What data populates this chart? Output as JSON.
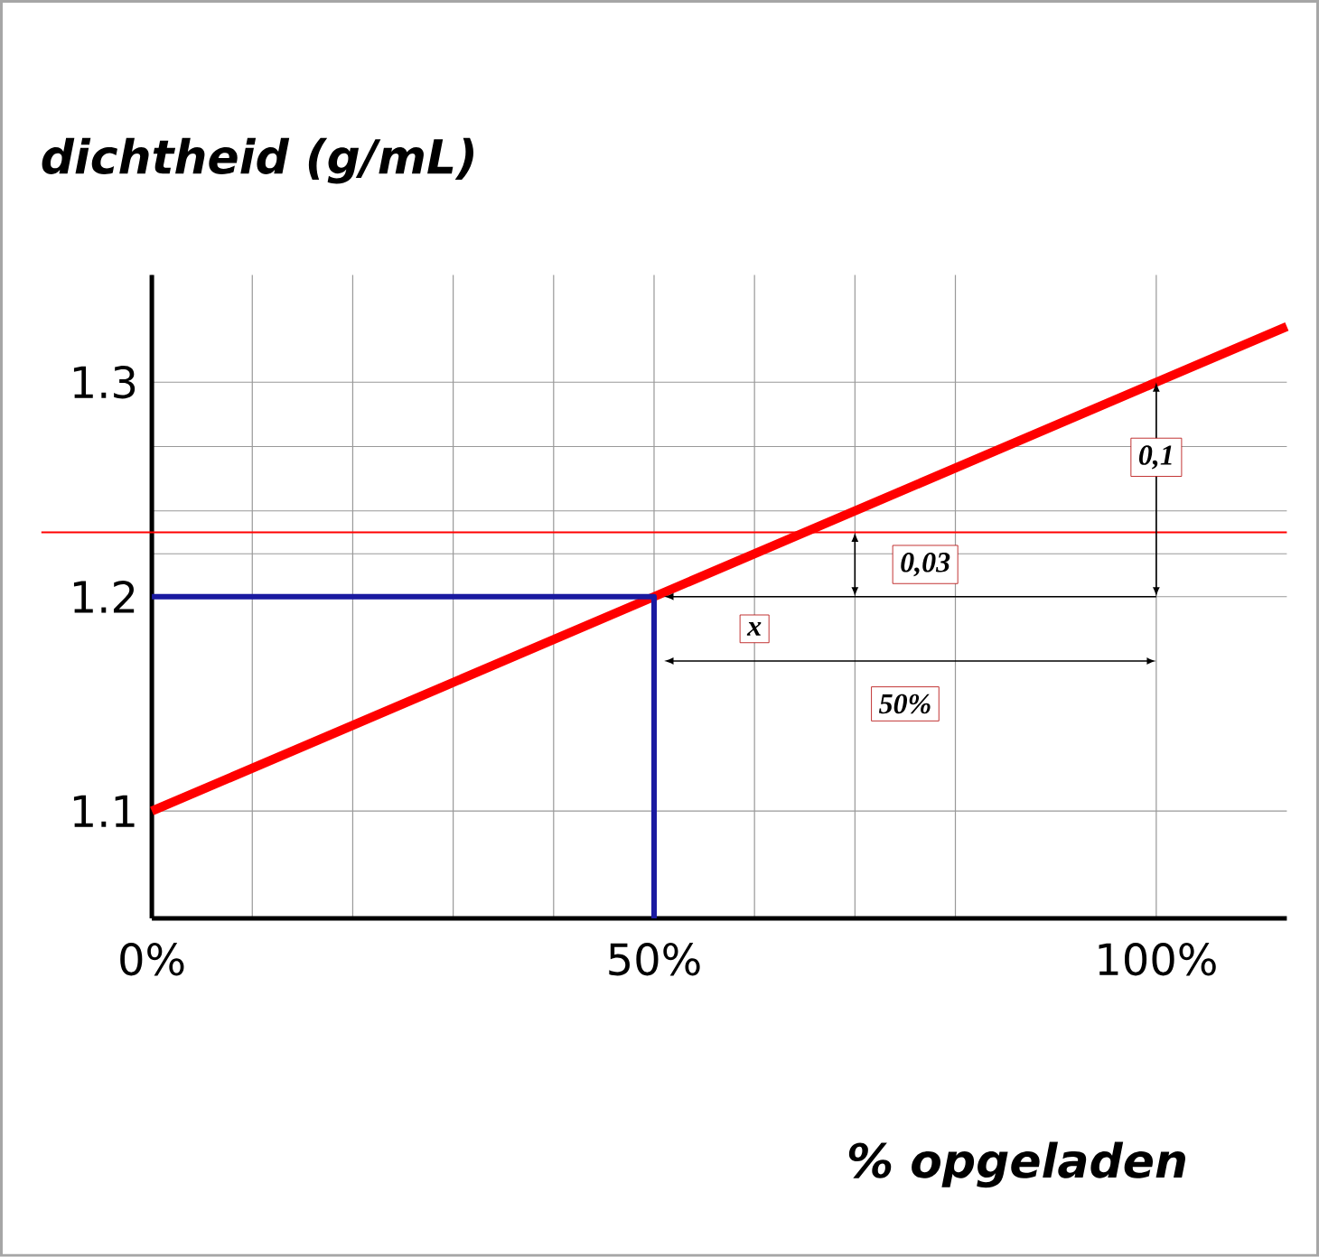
{
  "chart_data": {
    "type": "line",
    "xlabel": "% opgeladen",
    "ylabel": "dichtheid (g/mL)",
    "series": [
      {
        "x": [
          0,
          50,
          100,
          113
        ],
        "values": [
          1.1,
          1.2,
          1.3,
          1.326
        ],
        "color": "#ff0000"
      },
      {
        "x": [
          0,
          50,
          50
        ],
        "values": [
          1.2,
          1.2,
          1.05
        ],
        "color": "#1a1aa0"
      }
    ],
    "xlim": [
      0,
      113
    ],
    "ylim": [
      1.05,
      1.35
    ],
    "xticks": [
      {
        "value": 0,
        "label": "0%"
      },
      {
        "value": 10,
        "label": null
      },
      {
        "value": 20,
        "label": null
      },
      {
        "value": 30,
        "label": null
      },
      {
        "value": 40,
        "label": null
      },
      {
        "value": 50,
        "label": "50%"
      },
      {
        "value": 60,
        "label": null
      },
      {
        "value": 70,
        "label": null
      },
      {
        "value": 80,
        "label": null
      },
      {
        "value": 100,
        "label": "100%"
      }
    ],
    "yticks": [
      1.1,
      1.2,
      {
        "value": 1.22,
        "label": null
      },
      {
        "value": 1.24,
        "label": null
      },
      {
        "value": 1.27,
        "label": null
      },
      1.3
    ],
    "grid": true,
    "ref_lines": [
      {
        "axis": "y",
        "value": 1.23,
        "color": "#ff0000"
      }
    ],
    "annotations": [
      {
        "text": "0,1",
        "x": 100,
        "y": 1.265
      },
      {
        "text": "0,03",
        "x": 77,
        "y": 1.215
      },
      {
        "text": "x",
        "x": 60,
        "y": 1.185
      },
      {
        "text": "50%",
        "x": 75,
        "y": 1.15
      }
    ]
  }
}
